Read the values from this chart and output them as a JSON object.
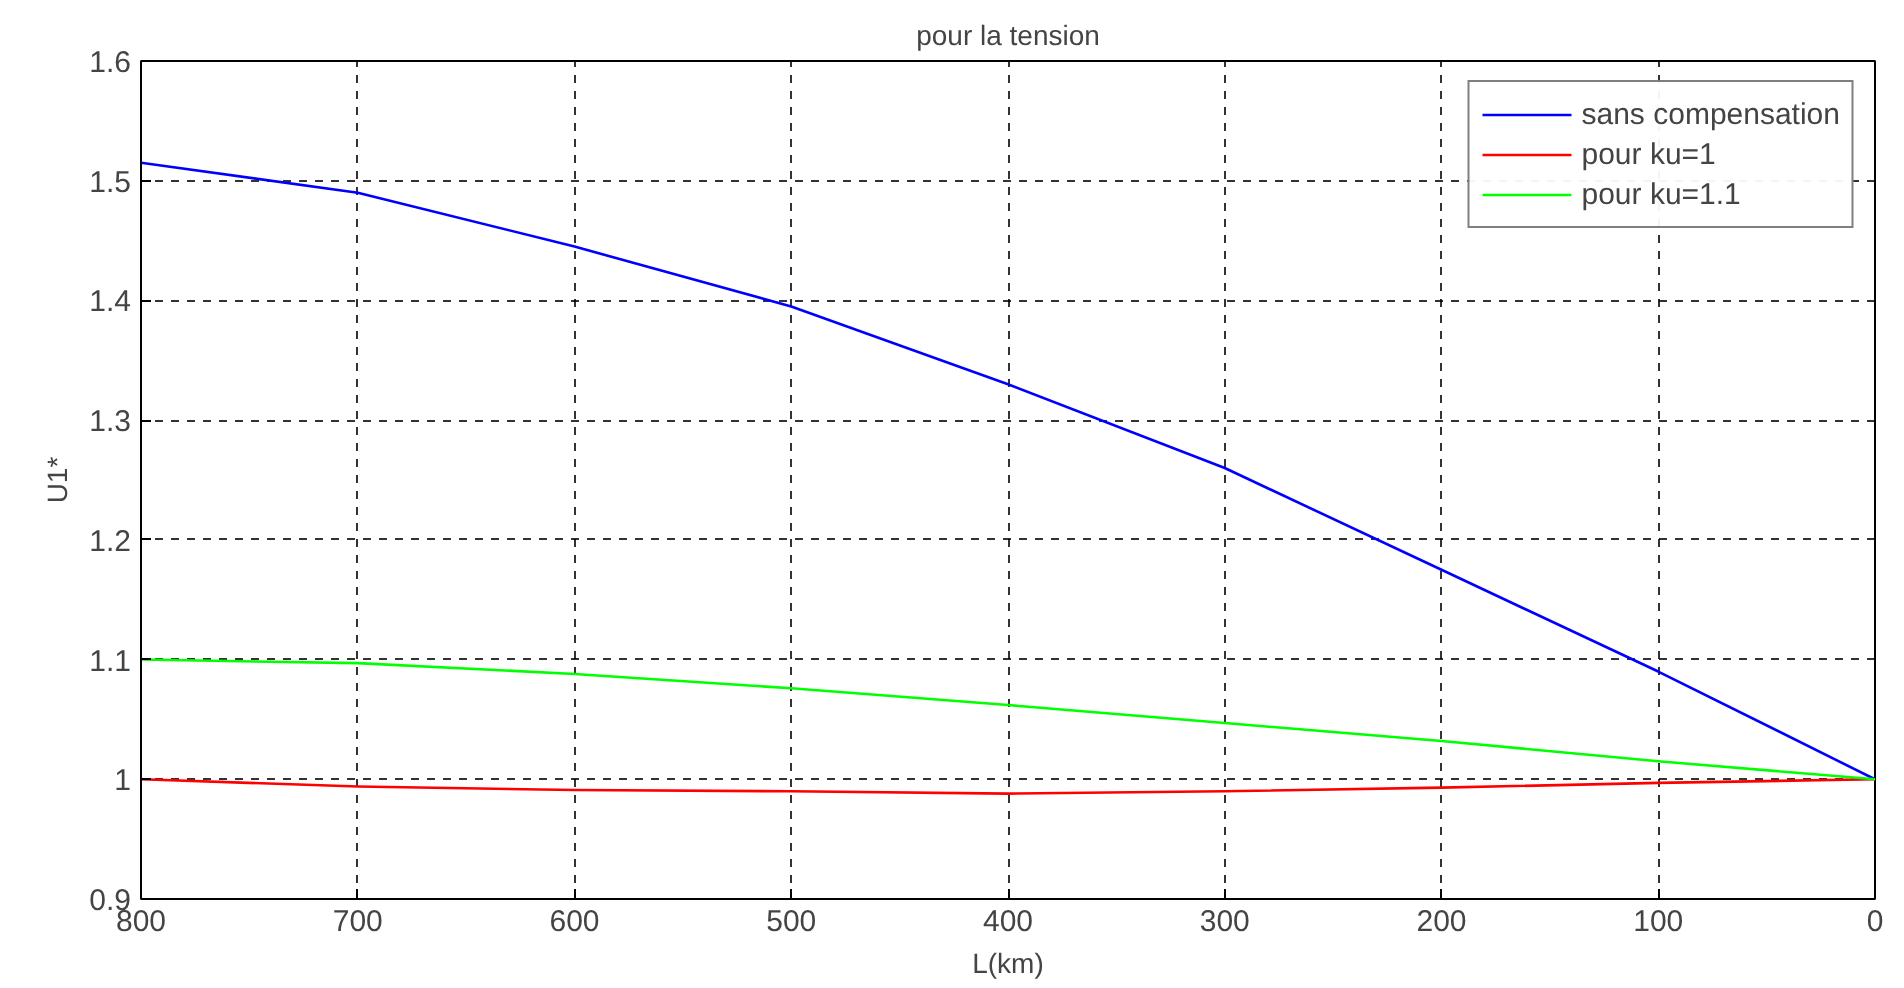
{
  "chart_data": {
    "type": "line",
    "title": "pour la tension",
    "xlabel": "L(km)",
    "ylabel": "U1*",
    "x": [
      800,
      700,
      600,
      500,
      400,
      300,
      200,
      100,
      0
    ],
    "series": [
      {
        "name": "sans compensation",
        "color": "#0000ff",
        "values": [
          1.515,
          1.49,
          1.445,
          1.395,
          1.33,
          1.26,
          1.175,
          1.09,
          1.0
        ]
      },
      {
        "name": "pour ku=1",
        "color": "#ff0000",
        "values": [
          1.0,
          0.994,
          0.991,
          0.99,
          0.988,
          0.99,
          0.993,
          0.997,
          1.0
        ]
      },
      {
        "name": "pour ku=1.1",
        "color": "#00ff00",
        "values": [
          1.1,
          1.097,
          1.088,
          1.076,
          1.062,
          1.047,
          1.032,
          1.015,
          1.0
        ]
      }
    ],
    "xlim": [
      800,
      0
    ],
    "xticks": [
      800,
      700,
      600,
      500,
      400,
      300,
      200,
      100,
      0
    ],
    "ylim": [
      0.9,
      1.6
    ],
    "yticks": [
      {
        "value": 0.9,
        "label": "0.9"
      },
      {
        "value": 1.0,
        "label": "1"
      },
      1.1,
      1.2,
      1.3,
      1.4,
      1.5,
      1.6
    ],
    "grid": true,
    "legend": "top right",
    "line_style": "solid",
    "marker": "none"
  }
}
